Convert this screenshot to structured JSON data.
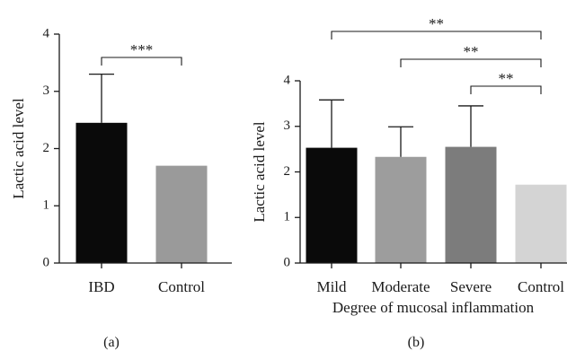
{
  "chart_data": [
    {
      "type": "bar",
      "panel_label": "(a)",
      "categories": [
        "IBD",
        "Control"
      ],
      "values": [
        2.45,
        1.7
      ],
      "errors": [
        0.85,
        0
      ],
      "colors": [
        "#0a0a0a",
        "#9a9a9a"
      ],
      "title": "",
      "xlabel": "",
      "ylabel": "Lactic acid level",
      "ylim": [
        0,
        4
      ],
      "yticks": [
        0,
        1,
        2,
        3,
        4
      ],
      "grid": false,
      "significance": [
        {
          "from": 0,
          "to": 1,
          "label": "***"
        }
      ]
    },
    {
      "type": "bar",
      "panel_label": "(b)",
      "categories": [
        "Mild",
        "Moderate",
        "Severe",
        "Control"
      ],
      "values": [
        2.53,
        2.33,
        2.55,
        1.72
      ],
      "errors": [
        1.05,
        0.66,
        0.9,
        0
      ],
      "colors": [
        "#0a0a0a",
        "#9d9d9d",
        "#7c7c7c",
        "#d4d4d4"
      ],
      "title": "",
      "xlabel": "Degree of mucosal inflammation",
      "ylabel": "Lactic acid level",
      "ylim": [
        0,
        4
      ],
      "yticks": [
        0,
        1,
        2,
        3,
        4
      ],
      "grid": false,
      "significance": [
        {
          "from": 0,
          "to": 3,
          "label": "**"
        },
        {
          "from": 1,
          "to": 3,
          "label": "**"
        },
        {
          "from": 2,
          "to": 3,
          "label": "**"
        }
      ]
    }
  ]
}
